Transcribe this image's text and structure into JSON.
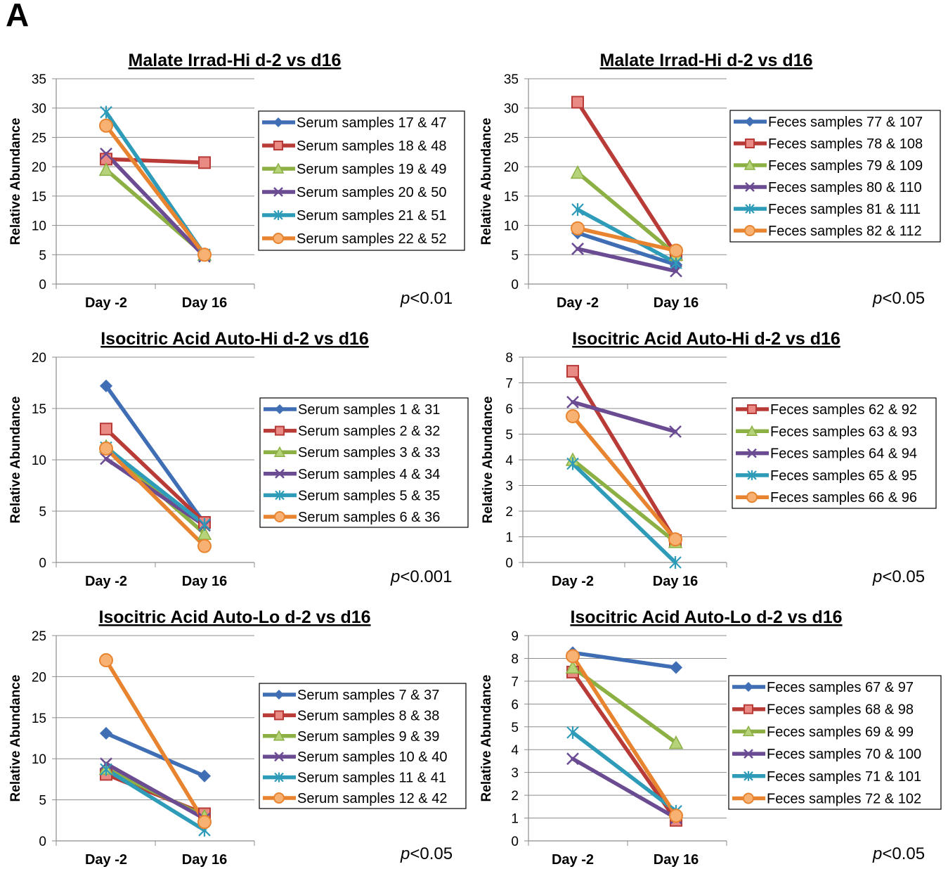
{
  "figure_label": "A",
  "chart_data": [
    {
      "type": "line",
      "title": "Malate Irrad-Hi d-2 vs d16",
      "ylabel": "Relative Abundance",
      "categories": [
        "Day -2",
        "Day 16"
      ],
      "ylim": [
        0,
        35
      ],
      "yticks": [
        0,
        5,
        10,
        15,
        20,
        25,
        30,
        35
      ],
      "grid": true,
      "legend_position": "right",
      "pvalue": {
        "p": "p",
        "rest": "<0.01"
      },
      "series": [
        {
          "name": "Serum samples 17 & 47",
          "values": [
            null,
            null
          ],
          "color": "#3f6eb5",
          "marker": "diamond"
        },
        {
          "name": "Serum samples 18 & 48",
          "values": [
            21.3,
            20.7
          ],
          "color": "#b83b37",
          "marker": "square"
        },
        {
          "name": "Serum samples 19 & 49",
          "values": [
            19.5,
            5.0
          ],
          "color": "#8cb043",
          "marker": "triangle"
        },
        {
          "name": "Serum samples 20 & 50",
          "values": [
            22.2,
            4.7
          ],
          "color": "#6b4c93",
          "marker": "x"
        },
        {
          "name": "Serum samples 21 & 51",
          "values": [
            29.3,
            5.0
          ],
          "color": "#2e9bb8",
          "marker": "star"
        },
        {
          "name": "Serum samples 22 & 52",
          "values": [
            27.0,
            5.0
          ],
          "color": "#e8842f",
          "marker": "circle"
        }
      ]
    },
    {
      "type": "line",
      "title": "Malate Irrad-Hi d-2 vs d16",
      "ylabel": "Relative Abundance",
      "categories": [
        "Day -2",
        "Day 16"
      ],
      "ylim": [
        0,
        35
      ],
      "yticks": [
        0,
        5,
        10,
        15,
        20,
        25,
        30,
        35
      ],
      "grid": true,
      "legend_position": "right",
      "pvalue": {
        "p": "p",
        "rest": "<0.05"
      },
      "series": [
        {
          "name": "Feces samples 77 & 107",
          "values": [
            8.7,
            3.3
          ],
          "color": "#3f6eb5",
          "marker": "diamond"
        },
        {
          "name": "Feces samples 78 & 108",
          "values": [
            31.0,
            5.0
          ],
          "color": "#b83b37",
          "marker": "square"
        },
        {
          "name": "Feces samples 79 & 109",
          "values": [
            19.0,
            5.0
          ],
          "color": "#8cb043",
          "marker": "triangle"
        },
        {
          "name": "Feces samples 80 & 110",
          "values": [
            6.0,
            2.2
          ],
          "color": "#6b4c93",
          "marker": "x"
        },
        {
          "name": "Feces samples 81 & 111",
          "values": [
            12.7,
            3.6
          ],
          "color": "#2e9bb8",
          "marker": "star"
        },
        {
          "name": "Feces samples 82 & 112",
          "values": [
            9.5,
            5.7
          ],
          "color": "#e8842f",
          "marker": "circle"
        }
      ]
    },
    {
      "type": "line",
      "title": "Isocitric Acid Auto-Hi d-2 vs d16",
      "ylabel": "Relative Abundance",
      "categories": [
        "Day -2",
        "Day 16"
      ],
      "ylim": [
        0,
        20
      ],
      "yticks": [
        0,
        5,
        10,
        15,
        20
      ],
      "grid": true,
      "legend_position": "right",
      "pvalue": {
        "p": "p",
        "rest": "<0.001"
      },
      "series": [
        {
          "name": "Serum samples 1 & 31",
          "values": [
            17.2,
            3.8
          ],
          "color": "#3f6eb5",
          "marker": "diamond"
        },
        {
          "name": "Serum samples 2 & 32",
          "values": [
            13.0,
            3.9
          ],
          "color": "#b83b37",
          "marker": "square"
        },
        {
          "name": "Serum samples 3 & 33",
          "values": [
            11.3,
            2.8
          ],
          "color": "#8cb043",
          "marker": "triangle"
        },
        {
          "name": "Serum samples 4 & 34",
          "values": [
            10.1,
            3.6
          ],
          "color": "#6b4c93",
          "marker": "x"
        },
        {
          "name": "Serum samples 5 & 35",
          "values": [
            11.2,
            3.7
          ],
          "color": "#2e9bb8",
          "marker": "star"
        },
        {
          "name": "Serum samples 6 & 36",
          "values": [
            11.1,
            1.6
          ],
          "color": "#e8842f",
          "marker": "circle"
        }
      ]
    },
    {
      "type": "line",
      "title": "Isocitric Acid Auto-Hi d-2 vs d16",
      "ylabel": "Relative Abundance",
      "categories": [
        "Day -2",
        "Day 16"
      ],
      "ylim": [
        0,
        8
      ],
      "yticks": [
        0,
        1,
        2,
        3,
        4,
        5,
        6,
        7,
        8
      ],
      "grid": true,
      "legend_position": "right",
      "pvalue": {
        "p": "p",
        "rest": "<0.05"
      },
      "series": [
        {
          "name": "Feces samples 62 & 92",
          "values": [
            7.45,
            0.85
          ],
          "color": "#b83b37",
          "marker": "square"
        },
        {
          "name": "Feces samples 63 & 93",
          "values": [
            4.0,
            0.8
          ],
          "color": "#8cb043",
          "marker": "triangle"
        },
        {
          "name": "Feces samples 64 & 94",
          "values": [
            6.25,
            5.1
          ],
          "color": "#6b4c93",
          "marker": "x"
        },
        {
          "name": "Feces samples 65 & 95",
          "values": [
            3.85,
            0.0
          ],
          "color": "#2e9bb8",
          "marker": "star"
        },
        {
          "name": "Feces samples 66 & 96",
          "values": [
            5.7,
            0.9
          ],
          "color": "#e8842f",
          "marker": "circle"
        }
      ]
    },
    {
      "type": "line",
      "title": "Isocitric Acid Auto-Lo d-2 vs d16",
      "ylabel": "Relative Abundance",
      "categories": [
        "Day -2",
        "Day 16"
      ],
      "ylim": [
        0,
        25
      ],
      "yticks": [
        0,
        5,
        10,
        15,
        20,
        25
      ],
      "grid": true,
      "legend_position": "right",
      "pvalue": {
        "p": "p",
        "rest": "<0.05"
      },
      "series": [
        {
          "name": "Serum samples 7 & 37",
          "values": [
            13.1,
            7.9
          ],
          "color": "#3f6eb5",
          "marker": "diamond"
        },
        {
          "name": "Serum samples 8 & 38",
          "values": [
            8.1,
            3.3
          ],
          "color": "#b83b37",
          "marker": "square"
        },
        {
          "name": "Serum samples 9 & 39",
          "values": [
            8.8,
            3.0
          ],
          "color": "#8cb043",
          "marker": "triangle"
        },
        {
          "name": "Serum samples 10 & 40",
          "values": [
            9.4,
            2.7
          ],
          "color": "#6b4c93",
          "marker": "x"
        },
        {
          "name": "Serum samples 11 & 41",
          "values": [
            8.7,
            1.3
          ],
          "color": "#2e9bb8",
          "marker": "star"
        },
        {
          "name": "Serum samples 12 & 42",
          "values": [
            22.0,
            2.3
          ],
          "color": "#e8842f",
          "marker": "circle"
        }
      ]
    },
    {
      "type": "line",
      "title": "Isocitric Acid Auto-Lo d-2 vs d16",
      "ylabel": "Relative Abundance",
      "categories": [
        "Day -2",
        "Day 16"
      ],
      "ylim": [
        0,
        9
      ],
      "yticks": [
        0,
        1,
        2,
        3,
        4,
        5,
        6,
        7,
        8,
        9
      ],
      "grid": true,
      "legend_position": "right",
      "pvalue": {
        "p": "p",
        "rest": "<0.05"
      },
      "series": [
        {
          "name": "Feces samples 67 & 97",
          "values": [
            8.25,
            7.6
          ],
          "color": "#3f6eb5",
          "marker": "diamond"
        },
        {
          "name": "Feces samples 68 & 98",
          "values": [
            7.4,
            0.9
          ],
          "color": "#b83b37",
          "marker": "square"
        },
        {
          "name": "Feces samples 69 & 99",
          "values": [
            7.6,
            4.3
          ],
          "color": "#8cb043",
          "marker": "triangle"
        },
        {
          "name": "Feces samples 70 & 100",
          "values": [
            3.6,
            1.0
          ],
          "color": "#6b4c93",
          "marker": "x"
        },
        {
          "name": "Feces samples 71 & 101",
          "values": [
            4.75,
            1.3
          ],
          "color": "#2e9bb8",
          "marker": "star"
        },
        {
          "name": "Feces samples 72 & 102",
          "values": [
            8.1,
            1.1
          ],
          "color": "#e8842f",
          "marker": "circle"
        }
      ]
    }
  ]
}
